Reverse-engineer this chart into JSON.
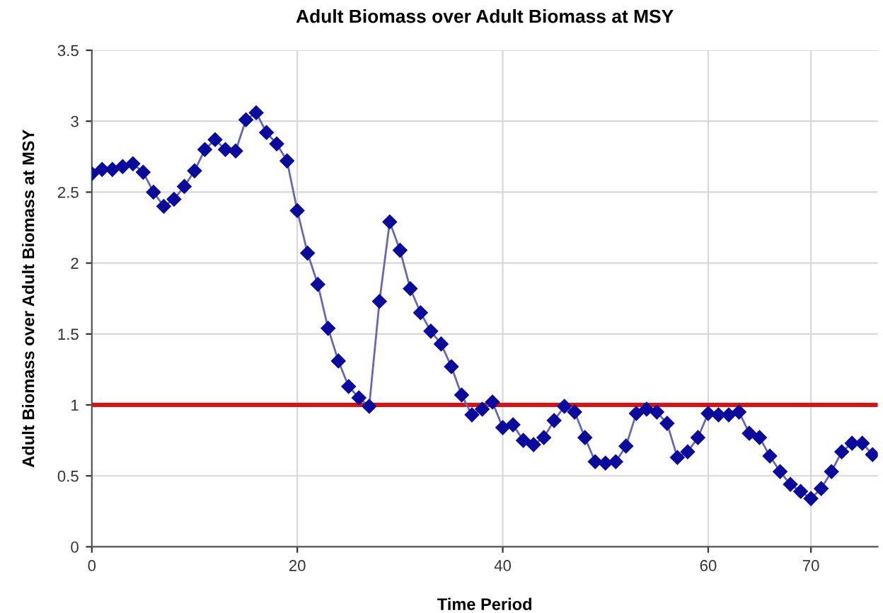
{
  "chart_data": {
    "type": "line",
    "title": "Adult Biomass over Adult Biomass at MSY",
    "xlabel": "Time Period",
    "ylabel": "Adult Biomass over Adult Biomass at MSY",
    "series": [
      {
        "color": "#0a0a9c",
        "x": [
          0,
          1,
          2,
          3,
          4,
          5,
          6,
          7,
          8,
          9,
          10,
          11,
          12,
          13,
          14,
          15,
          16,
          17,
          18,
          19,
          20,
          21,
          22,
          23,
          24,
          25,
          26,
          27,
          28,
          29,
          30,
          31,
          32,
          33,
          34,
          35,
          36,
          37,
          38,
          39,
          40,
          41,
          42,
          43,
          44,
          45,
          46,
          47,
          48,
          49,
          50,
          51,
          52,
          53,
          54,
          55,
          56,
          57,
          58,
          59,
          60,
          61,
          62,
          63,
          64,
          65,
          66,
          67,
          68,
          69,
          70,
          71,
          72,
          73,
          74,
          75,
          76
        ],
        "values": [
          2.63,
          2.66,
          2.66,
          2.68,
          2.7,
          2.64,
          2.5,
          2.4,
          2.45,
          2.54,
          2.65,
          2.8,
          2.87,
          2.8,
          2.79,
          3.01,
          3.06,
          2.92,
          2.84,
          2.72,
          2.37,
          2.07,
          1.85,
          1.54,
          1.31,
          1.13,
          1.05,
          0.99,
          1.73,
          2.29,
          2.09,
          1.82,
          1.65,
          1.52,
          1.43,
          1.27,
          1.07,
          0.93,
          0.97,
          1.02,
          0.84,
          0.86,
          0.75,
          0.72,
          0.77,
          0.89,
          0.99,
          0.95,
          0.77,
          0.6,
          0.59,
          0.6,
          0.71,
          0.94,
          0.97,
          0.95,
          0.87,
          0.63,
          0.67,
          0.77,
          0.94,
          0.93,
          0.93,
          0.95,
          0.8,
          0.77,
          0.64,
          0.53,
          0.44,
          0.39,
          0.34,
          0.41,
          0.53,
          0.67,
          0.73,
          0.73,
          0.65
        ]
      }
    ],
    "marker": "diamond",
    "line_style": "solid",
    "ref_lines": [
      {
        "axis": "y",
        "value": 1,
        "color": "#e01010"
      }
    ],
    "xlim": [
      0,
      76.5
    ],
    "xticks": [
      0,
      20,
      40,
      60,
      70
    ],
    "ylim": [
      0,
      3.5
    ],
    "yticks": [
      0,
      0.5,
      1,
      1.5,
      2,
      2.5,
      3,
      3.5
    ],
    "grid": true,
    "legend": false
  }
}
